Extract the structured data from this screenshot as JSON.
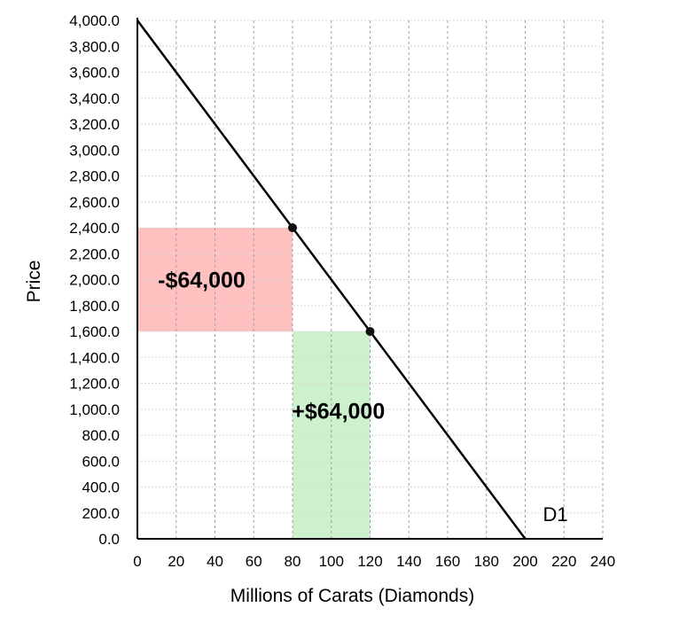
{
  "chart_data": {
    "type": "line",
    "xlabel": "Millions of Carats (Diamonds)",
    "ylabel": "Price",
    "xlim": [
      0,
      240
    ],
    "ylim": [
      0,
      4000
    ],
    "x_ticks": [
      "0",
      "20",
      "40",
      "60",
      "80",
      "100",
      "120",
      "140",
      "160",
      "180",
      "200",
      "220",
      "240"
    ],
    "y_ticks": [
      "0.0",
      "200.0",
      "400.0",
      "600.0",
      "800.0",
      "1,000.0",
      "1,200.0",
      "1,400.0",
      "1,600.0",
      "1,800.0",
      "2,000.0",
      "2,200.0",
      "2,400.0",
      "2,600.0",
      "2,800.0",
      "3,000.0",
      "3,200.0",
      "3,400.0",
      "3,600.0",
      "3,800.0",
      "4,000.0"
    ],
    "grid": true,
    "series": [
      {
        "name": "D1",
        "x": [
          0,
          200
        ],
        "y": [
          4000,
          0
        ]
      }
    ],
    "points": [
      {
        "x": 80,
        "y": 2400
      },
      {
        "x": 120,
        "y": 1600
      }
    ],
    "shaded_areas": [
      {
        "label": "-$64,000",
        "x": [
          0,
          80
        ],
        "y": [
          1600,
          2400
        ],
        "color": "#ffc0c0"
      },
      {
        "label": "+$64,000",
        "x": [
          80,
          120
        ],
        "y": [
          0,
          1600
        ],
        "color": "#cdf0cd"
      }
    ]
  }
}
